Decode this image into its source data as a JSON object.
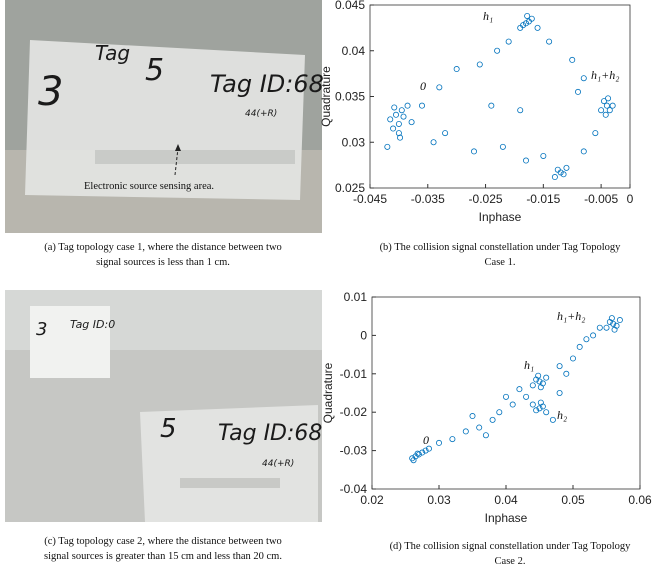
{
  "chart_data": [
    {
      "type": "scatter",
      "xlabel": "Inphase",
      "ylabel": "Quadrature",
      "color": "#0072bd",
      "xlim": [
        -0.045,
        0
      ],
      "xticks": [
        -0.045,
        -0.035,
        -0.025,
        -0.015,
        -0.005,
        0
      ],
      "ylim": [
        0.025,
        0.045
      ],
      "yticks": [
        0.025,
        0.03,
        0.035,
        0.04,
        0.045
      ],
      "annotations": [
        "0",
        "h₁",
        "h₁+h₂"
      ],
      "x": [
        -0.0405,
        -0.04,
        -0.0395,
        -0.041,
        -0.0385,
        -0.0415,
        -0.04,
        -0.0392,
        -0.0408,
        -0.0398,
        -0.042,
        -0.0378,
        -0.018,
        -0.0175,
        -0.0185,
        -0.017,
        -0.019,
        -0.016,
        -0.0178,
        -0.004,
        -0.0035,
        -0.0045,
        -0.003,
        -0.005,
        -0.0038,
        -0.0042,
        -0.012,
        -0.0115,
        -0.0125,
        -0.011,
        -0.013,
        -0.033,
        -0.03,
        -0.026,
        -0.023,
        -0.021,
        -0.014,
        -0.01,
        -0.008,
        -0.034,
        -0.032,
        -0.027,
        -0.022,
        -0.018,
        -0.015,
        -0.008,
        -0.006,
        -0.024,
        -0.036,
        -0.019,
        -0.009
      ],
      "y": [
        0.033,
        0.032,
        0.0335,
        0.0315,
        0.034,
        0.0325,
        0.031,
        0.0328,
        0.0338,
        0.0305,
        0.0295,
        0.0322,
        0.043,
        0.0432,
        0.0428,
        0.0435,
        0.0425,
        0.0425,
        0.0438,
        0.034,
        0.0335,
        0.0345,
        0.034,
        0.0335,
        0.0348,
        0.033,
        0.0267,
        0.0265,
        0.027,
        0.0272,
        0.0262,
        0.036,
        0.038,
        0.0385,
        0.04,
        0.041,
        0.041,
        0.039,
        0.037,
        0.03,
        0.031,
        0.029,
        0.0295,
        0.028,
        0.0285,
        0.029,
        0.031,
        0.034,
        0.034,
        0.0335,
        0.0355
      ]
    },
    {
      "type": "scatter",
      "xlabel": "Inphase",
      "ylabel": "Quadrature",
      "color": "#0072bd",
      "xlim": [
        0.02,
        0.06
      ],
      "xticks": [
        0.02,
        0.03,
        0.04,
        0.05,
        0.06
      ],
      "ylim": [
        -0.04,
        0.01
      ],
      "yticks": [
        -0.04,
        -0.03,
        -0.02,
        -0.01,
        0,
        0.01
      ],
      "annotations": [
        "h₁+h₂",
        "h₁",
        "h₂",
        "0"
      ],
      "x": [
        0.026,
        0.0265,
        0.027,
        0.0275,
        0.028,
        0.0262,
        0.0285,
        0.0268,
        0.045,
        0.0445,
        0.0455,
        0.044,
        0.046,
        0.0448,
        0.0452,
        0.045,
        0.0445,
        0.0455,
        0.044,
        0.046,
        0.0452,
        0.056,
        0.0555,
        0.0565,
        0.055,
        0.057,
        0.0558,
        0.0562,
        0.054,
        0.03,
        0.032,
        0.034,
        0.036,
        0.038,
        0.039,
        0.04,
        0.041,
        0.042,
        0.043,
        0.048,
        0.048,
        0.049,
        0.05,
        0.051,
        0.052,
        0.053,
        0.047,
        0.037,
        0.035
      ],
      "y": [
        -0.032,
        -0.0315,
        -0.031,
        -0.0305,
        -0.03,
        -0.0325,
        -0.0295,
        -0.0308,
        -0.012,
        -0.0115,
        -0.0125,
        -0.013,
        -0.011,
        -0.0105,
        -0.0135,
        -0.019,
        -0.0195,
        -0.0185,
        -0.018,
        -0.02,
        -0.0175,
        0.003,
        0.0035,
        0.0025,
        0.002,
        0.004,
        0.0045,
        0.0015,
        0.002,
        -0.028,
        -0.027,
        -0.025,
        -0.024,
        -0.022,
        -0.02,
        -0.016,
        -0.018,
        -0.014,
        -0.016,
        -0.015,
        -0.008,
        -0.01,
        -0.006,
        -0.003,
        -0.001,
        0,
        -0.022,
        -0.026,
        -0.021
      ]
    }
  ],
  "photos": [
    {
      "texts": [
        "3",
        "Tag",
        "5",
        "Tag ID:68",
        "44(+R)",
        "Electronic source sensing area."
      ]
    },
    {
      "texts": [
        "3",
        "Tag ID:0",
        "5",
        "Tag ID:68",
        "44(+R)"
      ]
    }
  ],
  "captions": [
    [
      "(a) Tag topology case 1, where the distance between two",
      "signal sources is less than 1 cm."
    ],
    [
      "(b)  The collision signal constellation under Tag Topology",
      "Case 1."
    ],
    [
      "(c) Tag topology case 2, where the distance between two",
      "signal sources is greater than 15 cm and less than 20 cm."
    ],
    [
      "(d)  The collision signal constellation under Tag Topology",
      "Case 2."
    ]
  ]
}
